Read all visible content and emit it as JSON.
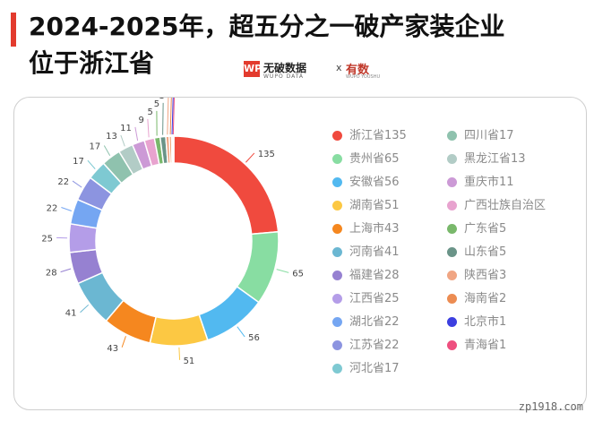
{
  "title": {
    "line1": "2024-2025年，超五分之一破产家装企业",
    "line2": "位于浙江省"
  },
  "logo": {
    "mark": "WP",
    "name": "无破数据",
    "sub": "WUPO DATA",
    "x": "x",
    "partner": "有数",
    "partner_sub": "WUPO YOUSHU"
  },
  "watermark": "zp1918.com",
  "chart_data": {
    "type": "pie",
    "variant": "donut",
    "legend_position": "right",
    "slices": [
      {
        "label": "浙江省135",
        "value": 135,
        "color": "#f04a3e"
      },
      {
        "label": "贵州省65",
        "value": 65,
        "color": "#88dda2"
      },
      {
        "label": "安徽省56",
        "value": 56,
        "color": "#52b9f0"
      },
      {
        "label": "湖南省51",
        "value": 51,
        "color": "#fcc843"
      },
      {
        "label": "上海市43",
        "value": 43,
        "color": "#f5871f"
      },
      {
        "label": "河南省41",
        "value": 41,
        "color": "#6bb7d2"
      },
      {
        "label": "福建省28",
        "value": 28,
        "color": "#9681d1"
      },
      {
        "label": "江西省25",
        "value": 25,
        "color": "#b49de8"
      },
      {
        "label": "湖北省22",
        "value": 22,
        "color": "#75a6f2"
      },
      {
        "label": "江苏省22",
        "value": 22,
        "color": "#8c94e0"
      },
      {
        "label": "河北省17",
        "value": 17,
        "color": "#7ec9d2"
      },
      {
        "label": "四川省17",
        "value": 17,
        "color": "#8fc2ae"
      },
      {
        "label": "黑龙江省13",
        "value": 13,
        "color": "#b2ccc6"
      },
      {
        "label": "重庆市11",
        "value": 11,
        "color": "#cc9ad6"
      },
      {
        "label": "广西壮族自治区",
        "value": 9,
        "color": "#e8a3cf"
      },
      {
        "label": "广东省5",
        "value": 5,
        "color": "#79b86b"
      },
      {
        "label": "山东省5",
        "value": 5,
        "color": "#6a9488"
      },
      {
        "label": "陕西省3",
        "value": 3,
        "color": "#f0a583"
      },
      {
        "label": "海南省2",
        "value": 2,
        "color": "#ec8c52"
      },
      {
        "label": "北京市1",
        "value": 1,
        "color": "#3c3fe0"
      },
      {
        "label": "青海省1",
        "value": 1,
        "color": "#ee4f7f"
      }
    ]
  }
}
